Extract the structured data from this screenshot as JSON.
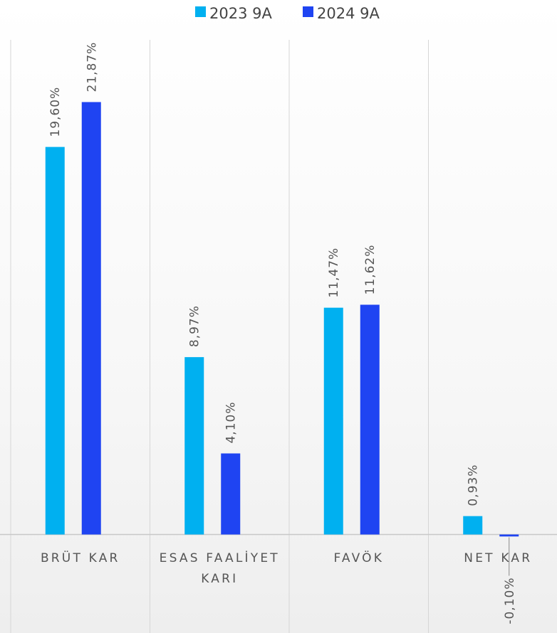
{
  "chart_data": {
    "type": "bar",
    "categories": [
      [
        "BRÜT KAR"
      ],
      [
        "ESAS FAALİYET",
        "KARI"
      ],
      [
        "FAVÖK"
      ],
      [
        "NET KAR"
      ]
    ],
    "series": [
      {
        "name": "2023 9A",
        "color": "#00B0F0",
        "values": [
          19.6,
          8.97,
          11.47,
          0.93
        ],
        "labels": [
          "19,60%",
          "8,97%",
          "11,47%",
          "0,93%"
        ]
      },
      {
        "name": "2024 9A",
        "color": "#1F44F2",
        "values": [
          21.87,
          4.1,
          11.62,
          -0.1
        ],
        "labels": [
          "21,87%",
          "4,10%",
          "11,62%",
          "-0,10%"
        ]
      }
    ],
    "ylim": [
      -0.1,
      21.87
    ],
    "legend": "top-center",
    "grid": "vertical"
  }
}
